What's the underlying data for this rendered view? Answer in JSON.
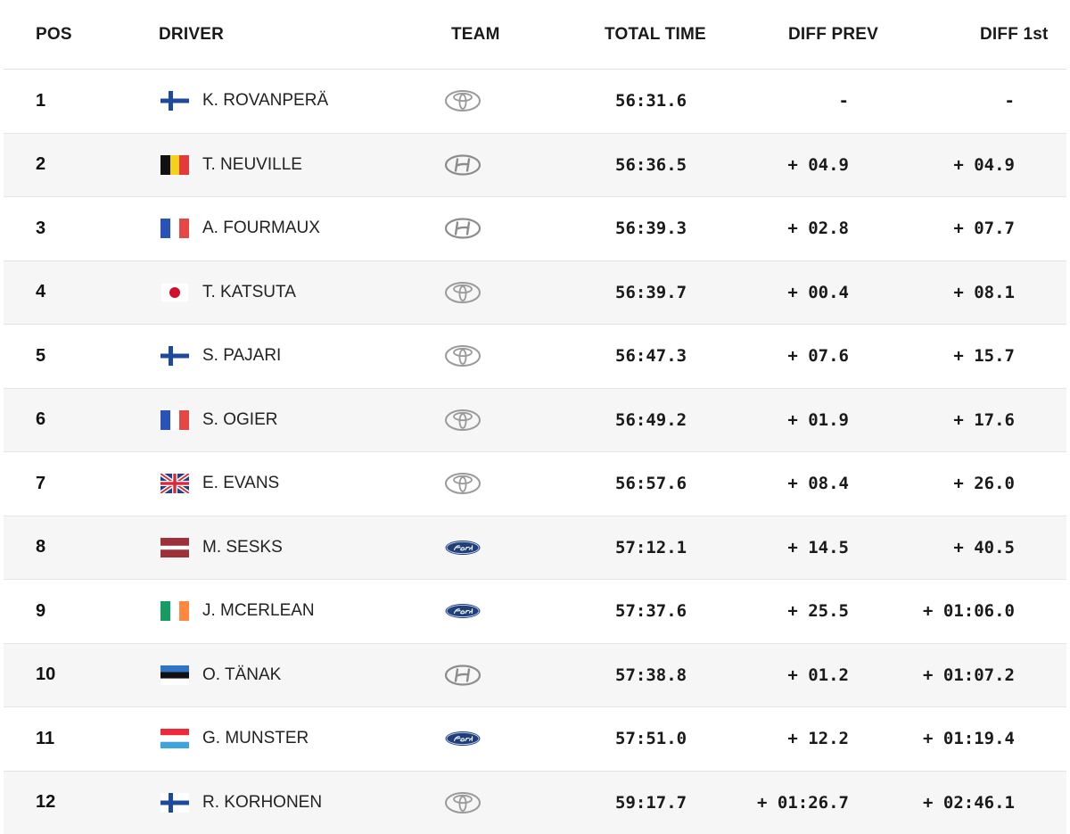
{
  "headers": {
    "pos": "POS",
    "driver": "DRIVER",
    "team": "TEAM",
    "total_time": "TOTAL TIME",
    "diff_prev": "DIFF PREV",
    "diff_1st": "DIFF 1st"
  },
  "rows": [
    {
      "pos": "1",
      "flag": "finland",
      "driver": "K. ROVANPERÄ",
      "team": "toyota-logo",
      "time": "56:31.6",
      "diff_prev": "-",
      "diff_1st": "-"
    },
    {
      "pos": "2",
      "flag": "belgium",
      "driver": "T. NEUVILLE",
      "team": "hyundai-logo",
      "time": "56:36.5",
      "diff_prev": "+ 04.9",
      "diff_1st": "+ 04.9"
    },
    {
      "pos": "3",
      "flag": "france",
      "driver": "A. FOURMAUX",
      "team": "hyundai-logo",
      "time": "56:39.3",
      "diff_prev": "+ 02.8",
      "diff_1st": "+ 07.7"
    },
    {
      "pos": "4",
      "flag": "japan",
      "driver": "T. KATSUTA",
      "team": "toyota-logo",
      "time": "56:39.7",
      "diff_prev": "+ 00.4",
      "diff_1st": "+ 08.1"
    },
    {
      "pos": "5",
      "flag": "finland",
      "driver": "S. PAJARI",
      "team": "toyota-logo",
      "time": "56:47.3",
      "diff_prev": "+ 07.6",
      "diff_1st": "+ 15.7"
    },
    {
      "pos": "6",
      "flag": "france",
      "driver": "S. OGIER",
      "team": "toyota-logo",
      "time": "56:49.2",
      "diff_prev": "+ 01.9",
      "diff_1st": "+ 17.6"
    },
    {
      "pos": "7",
      "flag": "uk",
      "driver": "E. EVANS",
      "team": "toyota-logo",
      "time": "56:57.6",
      "diff_prev": "+ 08.4",
      "diff_1st": "+ 26.0"
    },
    {
      "pos": "8",
      "flag": "latvia",
      "driver": "M. SESKS",
      "team": "ford-logo",
      "time": "57:12.1",
      "diff_prev": "+ 14.5",
      "diff_1st": "+ 40.5"
    },
    {
      "pos": "9",
      "flag": "ireland",
      "driver": "J. MCERLEAN",
      "team": "ford-logo",
      "time": "57:37.6",
      "diff_prev": "+ 25.5",
      "diff_1st": "+ 01:06.0"
    },
    {
      "pos": "10",
      "flag": "estonia",
      "driver": "O. TÄNAK",
      "team": "hyundai-logo",
      "time": "57:38.8",
      "diff_prev": "+ 01.2",
      "diff_1st": "+ 01:07.2"
    },
    {
      "pos": "11",
      "flag": "luxembourg",
      "driver": "G. MUNSTER",
      "team": "ford-logo",
      "time": "57:51.0",
      "diff_prev": "+ 12.2",
      "diff_1st": "+ 01:19.4"
    },
    {
      "pos": "12",
      "flag": "finland",
      "driver": "R. KORHONEN",
      "team": "toyota-logo",
      "time": "59:17.7",
      "diff_prev": "+ 01:26.7",
      "diff_1st": "+ 02:46.1"
    }
  ]
}
